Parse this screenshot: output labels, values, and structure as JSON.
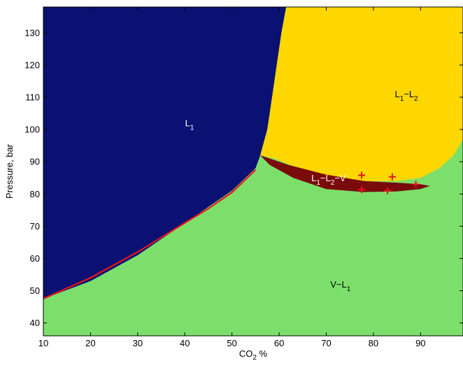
{
  "chart_data": {
    "type": "area",
    "title": "",
    "xlabel": "CO",
    "xlabel_sub": "2",
    "xlabel_suffix": " %",
    "ylabel": "Pressure, bar",
    "xlim": [
      10,
      99
    ],
    "ylim": [
      36,
      138
    ],
    "xticks": [
      10,
      20,
      30,
      40,
      50,
      60,
      70,
      80,
      90
    ],
    "yticks": [
      40,
      50,
      60,
      70,
      80,
      90,
      100,
      110,
      120,
      130
    ],
    "grid": false,
    "colors": {
      "L1": "#0a1172",
      "L1-L2": "#ffd700",
      "V-L1": "#7ddf6b",
      "L1-L2-V": "#7a0b0b",
      "line": "#e8141b",
      "markers": "#e8141b"
    },
    "regions": [
      {
        "name": "L1",
        "polygon": [
          [
            10,
            47.5
          ],
          [
            20,
            53
          ],
          [
            30,
            61
          ],
          [
            40,
            71
          ],
          [
            50,
            81
          ],
          [
            55,
            88
          ],
          [
            56,
            92
          ],
          [
            57.5,
            100
          ],
          [
            58.5,
            110
          ],
          [
            59.5,
            120
          ],
          [
            60.5,
            130
          ],
          [
            61.5,
            138
          ],
          [
            10,
            138
          ]
        ]
      },
      {
        "name": "L1-L2",
        "polygon": [
          [
            61.5,
            138
          ],
          [
            99,
            138
          ],
          [
            99,
            97
          ],
          [
            97,
            92
          ],
          [
            94,
            88
          ],
          [
            90,
            85
          ],
          [
            85,
            84
          ],
          [
            75,
            84
          ],
          [
            65,
            87.5
          ],
          [
            59,
            91
          ],
          [
            56,
            92
          ],
          [
            57.5,
            100
          ],
          [
            58.5,
            110
          ],
          [
            59.5,
            120
          ],
          [
            60.5,
            130
          ]
        ]
      },
      {
        "name": "L1-L2-V",
        "polygon": [
          [
            56,
            92
          ],
          [
            62,
            89
          ],
          [
            70,
            86
          ],
          [
            78,
            84
          ],
          [
            85,
            83.5
          ],
          [
            90,
            83
          ],
          [
            92,
            82.5
          ],
          [
            90,
            81.5
          ],
          [
            85,
            80.8
          ],
          [
            78,
            80.6
          ],
          [
            70,
            81.5
          ],
          [
            63,
            85
          ],
          [
            58,
            89
          ]
        ]
      }
    ],
    "line": [
      [
        10,
        47.5
      ],
      [
        20,
        54
      ],
      [
        30,
        62
      ],
      [
        40,
        71
      ],
      [
        45,
        75.5
      ],
      [
        50,
        80.5
      ],
      [
        55,
        87.5
      ]
    ],
    "markers": [
      [
        77.5,
        85.8
      ],
      [
        84,
        85.3
      ],
      [
        89,
        83
      ],
      [
        77.5,
        81.3
      ],
      [
        83,
        81
      ]
    ],
    "labels": [
      {
        "id": "L1",
        "main": "L",
        "subs": [
          "1"
        ],
        "separators": [],
        "trail": "",
        "x": 41,
        "y": 101,
        "color": "#ffffff"
      },
      {
        "id": "L1-L2",
        "main": "L",
        "subs": [
          "1",
          "2"
        ],
        "separators": [
          "−L"
        ],
        "trail": "",
        "x": 87,
        "y": 110,
        "color": "#000000"
      },
      {
        "id": "L1-L2-V",
        "main": "L",
        "subs": [
          "1",
          "2"
        ],
        "separators": [
          "−L"
        ],
        "trail": "−V",
        "x": 70.5,
        "y": 84,
        "color": "#ffffff"
      },
      {
        "id": "V-L1",
        "main": "V−L",
        "subs": [
          "1"
        ],
        "separators": [],
        "trail": "",
        "x": 73,
        "y": 51,
        "color": "#000000"
      }
    ]
  }
}
